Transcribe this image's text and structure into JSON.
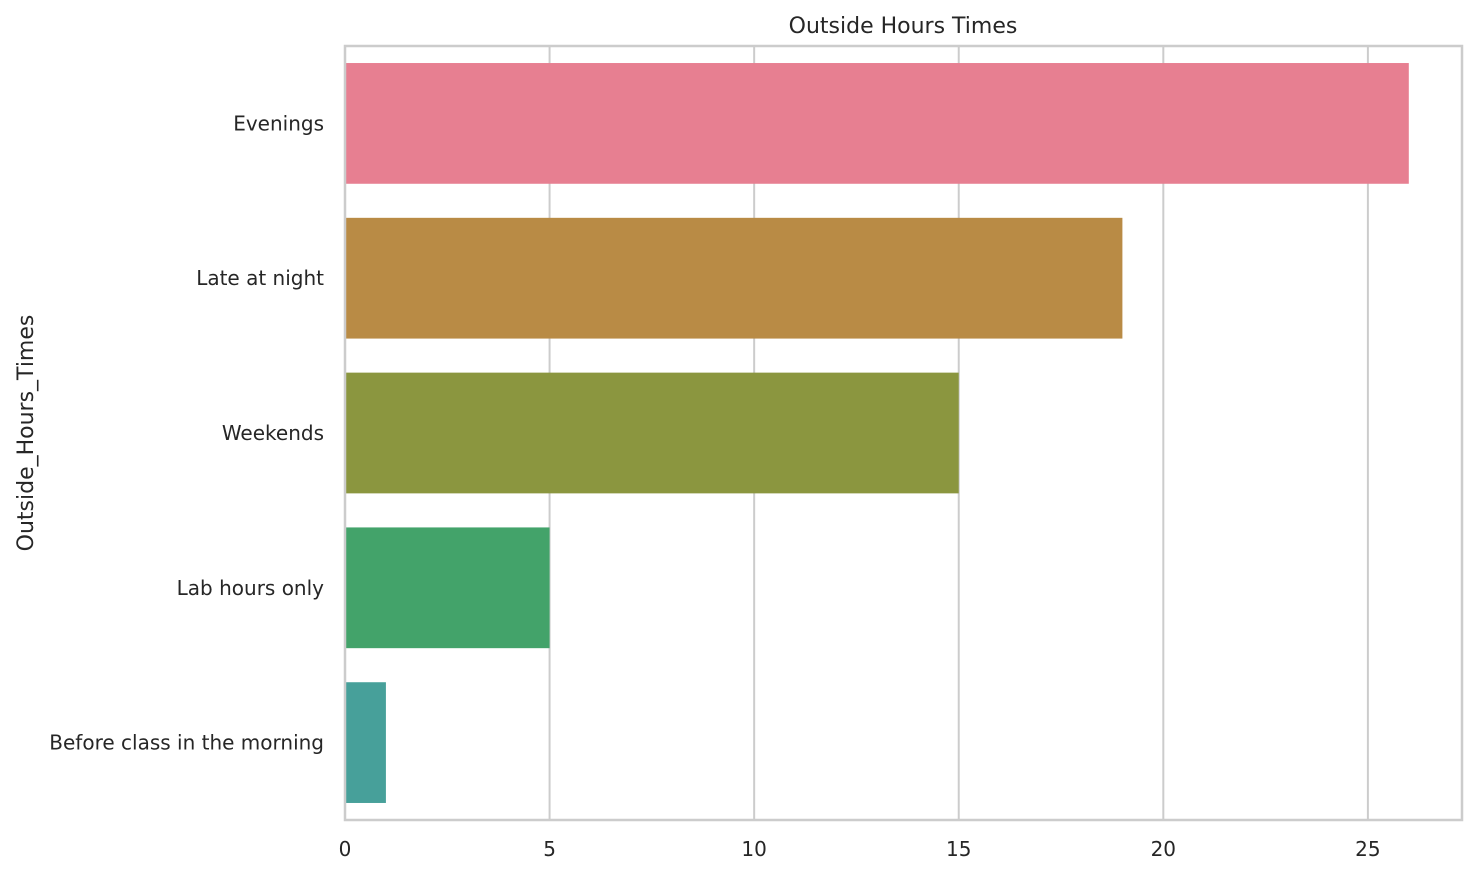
{
  "chart_data": {
    "type": "bar",
    "orientation": "horizontal",
    "title": "Outside Hours Times",
    "xlabel": "",
    "ylabel": "Outside_Hours_Times",
    "categories": [
      "Evenings",
      "Late at night",
      "Weekends",
      "Lab hours only",
      "Before class in the morning"
    ],
    "values": [
      26,
      19,
      15,
      5,
      1
    ],
    "colors": [
      "#e77f91",
      "#b98b45",
      "#8b963f",
      "#43a36a",
      "#47a09a"
    ],
    "xlim": [
      0,
      27.3
    ],
    "xticks": [
      0,
      5,
      10,
      15,
      20,
      25
    ],
    "grid": "vertical",
    "legend": "none"
  }
}
